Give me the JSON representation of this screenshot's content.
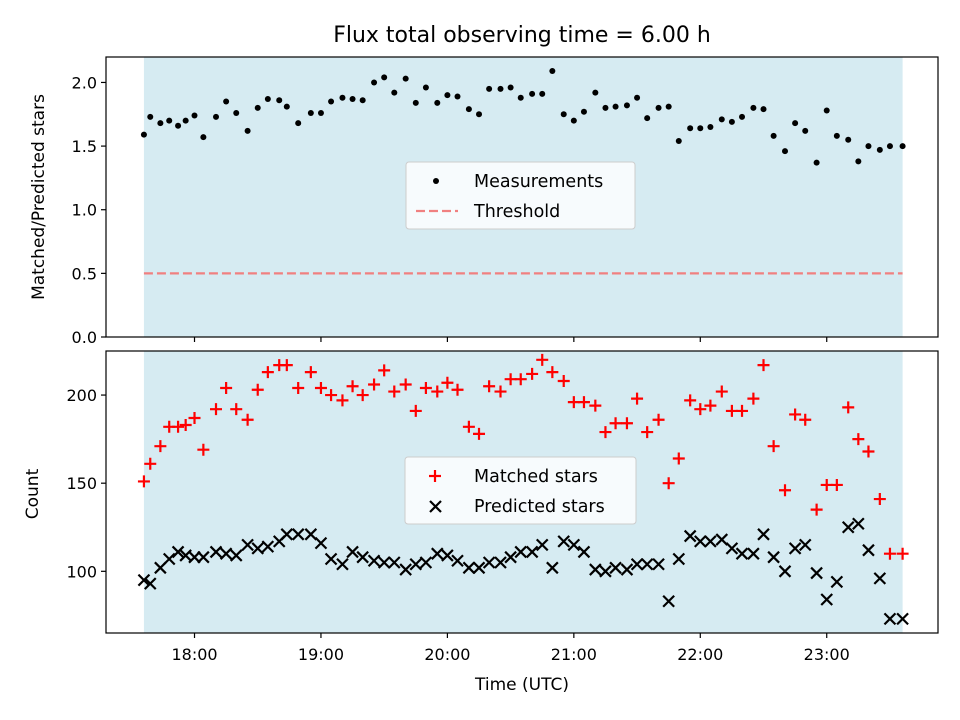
{
  "chart_data": {
    "type": "scatter",
    "title": "Flux total observing time = 6.00 h",
    "xlabel": "Time (UTC)",
    "xlim_hours": [
      17.3,
      23.88
    ],
    "x_ticks": [
      18,
      19,
      20,
      21,
      22,
      23
    ],
    "x_tick_labels": [
      "18:00",
      "19:00",
      "20:00",
      "21:00",
      "22:00",
      "23:00"
    ],
    "shaded_span_hours": [
      17.6,
      23.6
    ],
    "shade_color": "#add8e6",
    "top_panel": {
      "ylabel": "Matched/Predicted stars",
      "ylim": [
        0,
        2.2
      ],
      "y_ticks": [
        0.0,
        0.5,
        1.0,
        1.5,
        2.0
      ],
      "y_tick_labels": [
        "0.0",
        "0.5",
        "1.0",
        "1.5",
        "2.0"
      ],
      "threshold": 0.5,
      "threshold_color": "#f08080",
      "measurement_color": "#000000",
      "legend": {
        "measurements": "Measurements",
        "threshold": "Threshold"
      },
      "series": [
        {
          "name": "Measurements",
          "x": [
            17.6,
            17.65,
            17.73,
            17.8,
            17.87,
            17.93,
            18.0,
            18.07,
            18.17,
            18.25,
            18.33,
            18.42,
            18.5,
            18.58,
            18.67,
            18.73,
            18.82,
            18.92,
            19.0,
            19.08,
            19.17,
            19.25,
            19.33,
            19.42,
            19.5,
            19.58,
            19.67,
            19.75,
            19.83,
            19.92,
            20.0,
            20.08,
            20.17,
            20.25,
            20.33,
            20.42,
            20.5,
            20.58,
            20.67,
            20.75,
            20.83,
            20.92,
            21.0,
            21.08,
            21.17,
            21.25,
            21.33,
            21.42,
            21.5,
            21.58,
            21.67,
            21.75,
            21.83,
            21.92,
            22.0,
            22.08,
            22.17,
            22.25,
            22.33,
            22.42,
            22.5,
            22.58,
            22.67,
            22.75,
            22.83,
            22.92,
            23.0,
            23.08,
            23.17,
            23.25,
            23.33,
            23.42,
            23.5,
            23.6
          ],
          "y": [
            1.59,
            1.73,
            1.68,
            1.7,
            1.66,
            1.7,
            1.74,
            1.57,
            1.73,
            1.85,
            1.76,
            1.62,
            1.8,
            1.87,
            1.86,
            1.81,
            1.68,
            1.76,
            1.76,
            1.85,
            1.88,
            1.87,
            1.86,
            2.0,
            2.04,
            1.92,
            2.03,
            1.84,
            1.96,
            1.84,
            1.9,
            1.89,
            1.79,
            1.75,
            1.95,
            1.95,
            1.96,
            1.88,
            1.91,
            1.91,
            2.09,
            1.75,
            1.7,
            1.77,
            1.92,
            1.8,
            1.81,
            1.82,
            1.88,
            1.72,
            1.8,
            1.81,
            1.54,
            1.64,
            1.64,
            1.65,
            1.71,
            1.69,
            1.73,
            1.8,
            1.79,
            1.58,
            1.46,
            1.68,
            1.62,
            1.37,
            1.78,
            1.58,
            1.55,
            1.38,
            1.5,
            1.47,
            1.5,
            1.5
          ]
        }
      ]
    },
    "bottom_panel": {
      "ylabel": "Count",
      "ylim": [
        65,
        225
      ],
      "y_ticks": [
        100,
        150,
        200
      ],
      "y_tick_labels": [
        "100",
        "150",
        "200"
      ],
      "legend": {
        "matched": "Matched stars",
        "predicted": "Predicted stars"
      },
      "series": [
        {
          "name": "Matched stars",
          "marker": "plus",
          "color": "#ff0000",
          "x": [
            17.6,
            17.65,
            17.73,
            17.8,
            17.87,
            17.93,
            18.0,
            18.07,
            18.17,
            18.25,
            18.33,
            18.42,
            18.5,
            18.58,
            18.67,
            18.73,
            18.82,
            18.92,
            19.0,
            19.08,
            19.17,
            19.25,
            19.33,
            19.42,
            19.5,
            19.58,
            19.67,
            19.75,
            19.83,
            19.92,
            20.0,
            20.08,
            20.17,
            20.25,
            20.33,
            20.42,
            20.5,
            20.58,
            20.67,
            20.75,
            20.83,
            20.92,
            21.0,
            21.08,
            21.17,
            21.25,
            21.33,
            21.42,
            21.5,
            21.58,
            21.67,
            21.75,
            21.83,
            21.92,
            22.0,
            22.08,
            22.17,
            22.25,
            22.33,
            22.42,
            22.5,
            22.58,
            22.67,
            22.75,
            22.83,
            22.92,
            23.0,
            23.08,
            23.17,
            23.25,
            23.33,
            23.42,
            23.5,
            23.6
          ],
          "y": [
            151,
            161,
            171,
            182,
            182,
            183,
            187,
            169,
            192,
            204,
            192,
            186,
            203,
            213,
            217,
            217,
            204,
            213,
            204,
            200,
            197,
            205,
            200,
            206,
            214,
            202,
            206,
            191,
            204,
            202,
            207,
            203,
            182,
            178,
            205,
            202,
            209,
            209,
            212,
            220,
            213,
            208,
            196,
            196,
            194,
            179,
            184,
            184,
            198,
            179,
            186,
            150,
            164,
            197,
            192,
            194,
            202,
            191,
            191,
            198,
            217,
            171,
            146,
            189,
            186,
            135,
            149,
            149,
            193,
            175,
            168,
            141,
            110,
            110
          ]
        },
        {
          "name": "Predicted stars",
          "marker": "x",
          "color": "#000000",
          "x": [
            17.6,
            17.65,
            17.73,
            17.8,
            17.87,
            17.93,
            18.0,
            18.07,
            18.17,
            18.25,
            18.33,
            18.42,
            18.5,
            18.58,
            18.67,
            18.73,
            18.82,
            18.92,
            19.0,
            19.08,
            19.17,
            19.25,
            19.33,
            19.42,
            19.5,
            19.58,
            19.67,
            19.75,
            19.83,
            19.92,
            20.0,
            20.08,
            20.17,
            20.25,
            20.33,
            20.42,
            20.5,
            20.58,
            20.67,
            20.75,
            20.83,
            20.92,
            21.0,
            21.08,
            21.17,
            21.25,
            21.33,
            21.42,
            21.5,
            21.58,
            21.67,
            21.75,
            21.83,
            21.92,
            22.0,
            22.08,
            22.17,
            22.25,
            22.33,
            22.42,
            22.5,
            22.58,
            22.67,
            22.75,
            22.83,
            22.92,
            23.0,
            23.08,
            23.17,
            23.25,
            23.33,
            23.42,
            23.5,
            23.6
          ],
          "y": [
            95,
            93,
            102,
            107,
            111,
            109,
            108,
            108,
            111,
            110,
            109,
            115,
            113,
            114,
            117,
            121,
            121,
            121,
            116,
            107,
            104,
            111,
            108,
            106,
            105,
            105,
            101,
            104,
            105,
            110,
            109,
            106,
            102,
            102,
            105,
            105,
            108,
            111,
            111,
            115,
            102,
            117,
            115,
            111,
            101,
            100,
            102,
            101,
            104,
            104,
            104,
            83,
            107,
            120,
            117,
            117,
            118,
            113,
            110,
            110,
            121,
            108,
            100,
            113,
            115,
            99,
            84,
            94,
            125,
            127,
            112,
            96,
            73,
            73
          ]
        }
      ]
    }
  }
}
